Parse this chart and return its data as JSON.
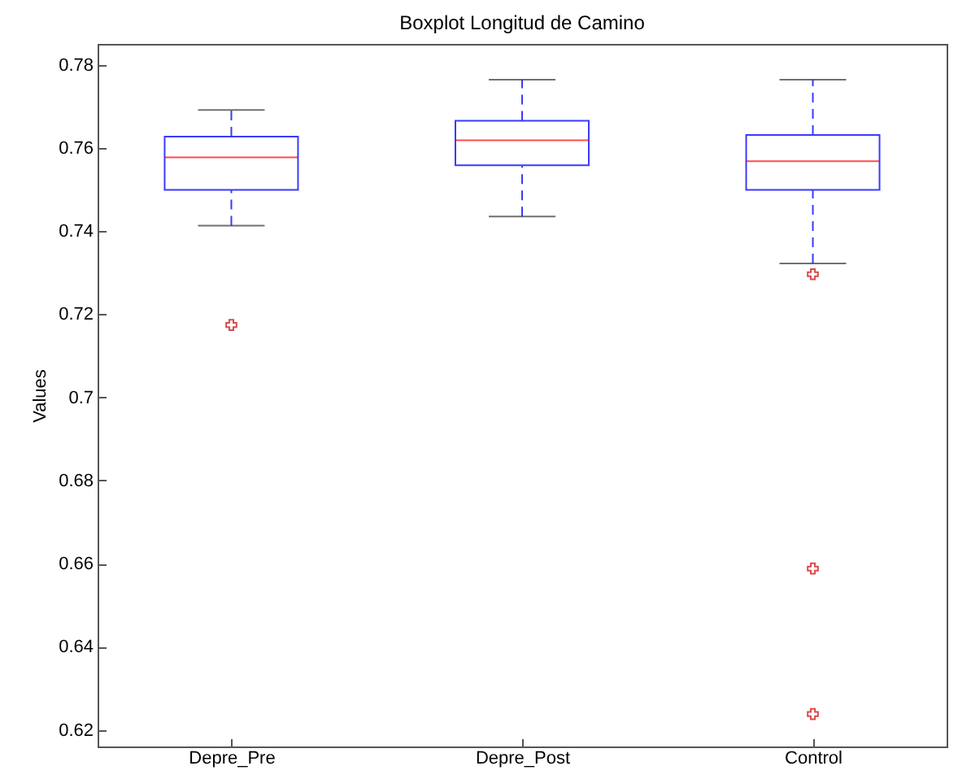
{
  "chart_data": {
    "type": "box",
    "title": "Boxplot Longitud de Camino",
    "ylabel": "Values",
    "categories": [
      "Depre_Pre",
      "Depre_Post",
      "Control"
    ],
    "ylim": [
      0.616,
      0.785
    ],
    "yticks": [
      0.62,
      0.64,
      0.66,
      0.68,
      0.7,
      0.72,
      0.74,
      0.76,
      0.78
    ],
    "boxes": [
      {
        "low": 0.7413,
        "q1": 0.7499,
        "median": 0.7577,
        "q3": 0.7627,
        "high": 0.7691,
        "outliers": [
          0.7174
        ]
      },
      {
        "low": 0.7435,
        "q1": 0.7558,
        "median": 0.7618,
        "q3": 0.7665,
        "high": 0.7764
      },
      {
        "low": 0.7322,
        "q1": 0.7499,
        "median": 0.7568,
        "q3": 0.7631,
        "high": 0.7764,
        "outliers": [
          0.7296,
          0.6588,
          0.6238
        ]
      }
    ],
    "grid": false
  }
}
